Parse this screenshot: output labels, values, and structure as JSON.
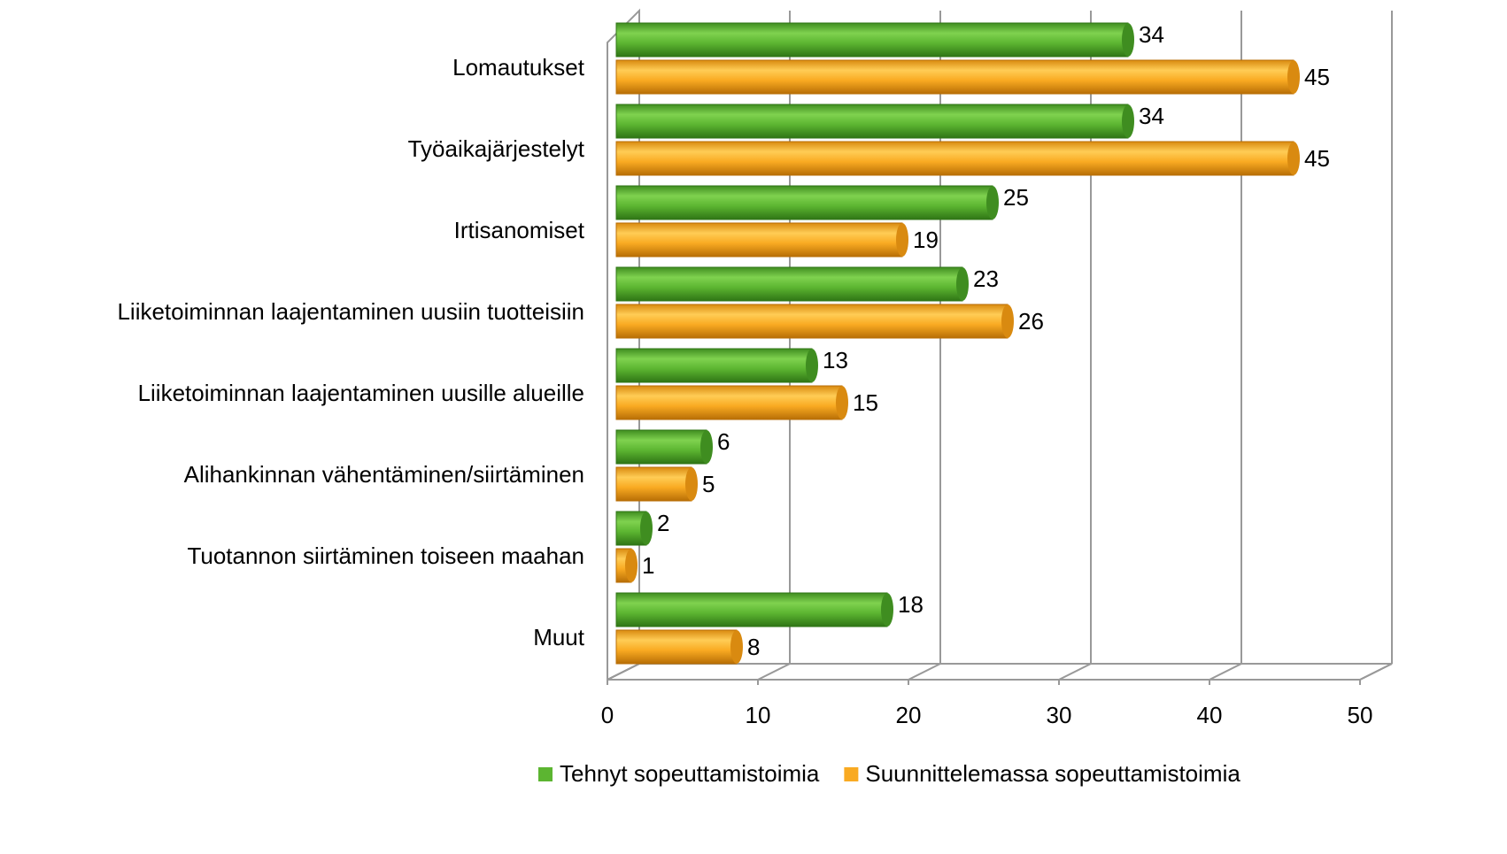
{
  "chart_data": {
    "type": "bar",
    "orientation": "horizontal",
    "categories": [
      "Lomautukset",
      "Työaikajärjestelyt",
      "Irtisanomiset",
      "Liiketoiminnan laajentaminen uusiin tuotteisiin",
      "Liiketoiminnan laajentaminen uusille alueille",
      "Alihankinnan vähentäminen/siirtäminen",
      "Tuotannon siirtäminen toiseen maahan",
      "Muut"
    ],
    "series": [
      {
        "name": "Tehnyt sopeuttamistoimia",
        "color": "#5cb531",
        "values": [
          34,
          34,
          25,
          23,
          13,
          6,
          2,
          18
        ]
      },
      {
        "name": "Suunnittelemassa sopeuttamistoimia",
        "color": "#f9aa22",
        "values": [
          45,
          45,
          19,
          26,
          15,
          5,
          1,
          8
        ]
      }
    ],
    "xlim": [
      0,
      50
    ],
    "xticks": [
      0,
      10,
      20,
      30,
      40,
      50
    ],
    "grid": true,
    "legend": "bottom"
  }
}
